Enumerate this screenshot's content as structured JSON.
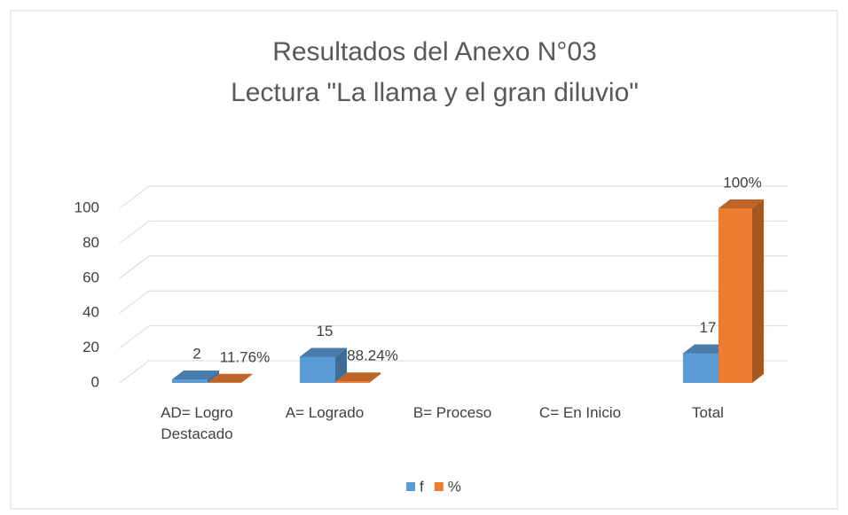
{
  "chart_data": {
    "type": "bar3d",
    "title": "Resultados del Anexo N°03",
    "subtitle": "Lectura \"La llama y el gran diluvio\"",
    "categories": [
      "AD= Logro Destacado",
      "A= Logrado",
      "B= Proceso",
      "C= En Inicio",
      "Total"
    ],
    "series": [
      {
        "name": "f",
        "color": "#5b9bd5",
        "values": [
          2,
          15,
          null,
          null,
          17
        ],
        "value_labels": [
          "2",
          "15",
          null,
          null,
          "17"
        ]
      },
      {
        "name": "%",
        "color": "#ed7d31",
        "values": [
          0.1176,
          0.8824,
          null,
          null,
          100
        ],
        "value_labels": [
          "11.76%",
          "88.24%",
          null,
          null,
          "100%"
        ]
      }
    ],
    "ylim": [
      0,
      100
    ],
    "yticks": [
      0,
      20,
      40,
      60,
      80,
      100
    ],
    "grid": true,
    "legend": "bottom"
  }
}
